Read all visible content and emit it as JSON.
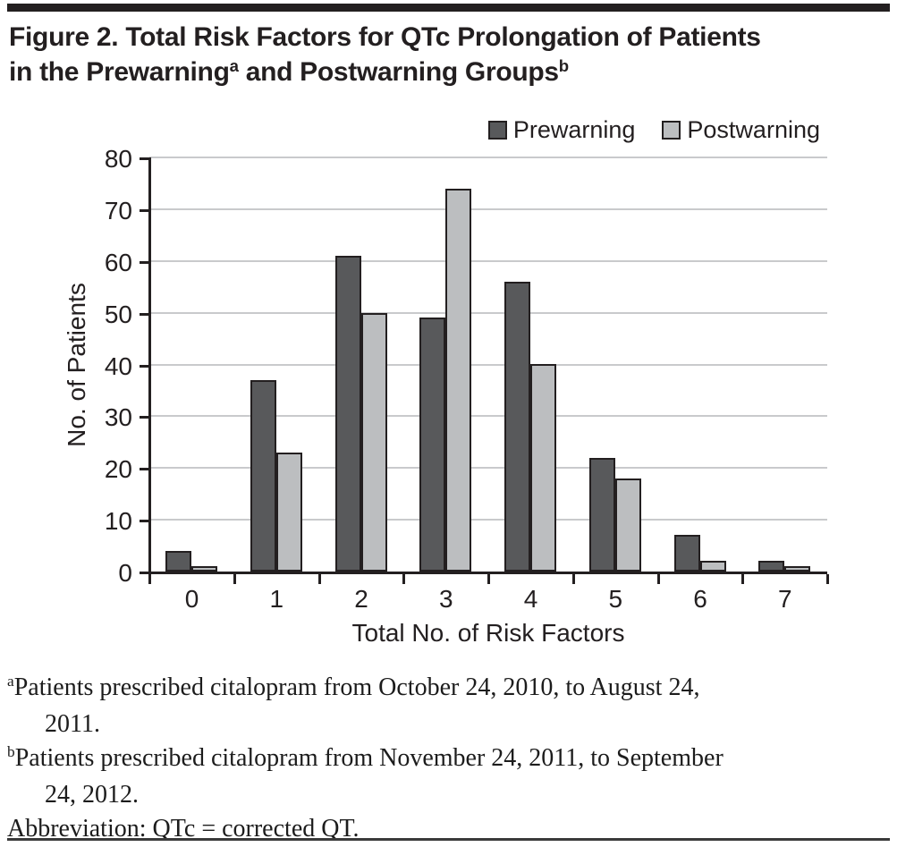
{
  "figure": {
    "title": {
      "line1": "Figure 2. Total Risk Factors for QTc Prolongation of Patients",
      "line2_segments": [
        {
          "text": "in the Prewarning"
        },
        {
          "sup": "a"
        },
        {
          "text": " and Postwarning Groups"
        },
        {
          "sup": "b"
        }
      ]
    },
    "footnotes": [
      {
        "sup": "a",
        "lines": [
          "Patients prescribed citalopram from October 24, 2010, to August 24,",
          "2011."
        ]
      },
      {
        "sup": "b",
        "lines": [
          "Patients prescribed citalopram from November 24, 2011, to September",
          "24, 2012."
        ]
      },
      {
        "sup": "",
        "lines": [
          "Abbreviation: QTc = corrected QT."
        ]
      }
    ],
    "accent_bar_color": "#231f20"
  },
  "chart_data": {
    "type": "bar",
    "categories": [
      "0",
      "1",
      "2",
      "3",
      "4",
      "5",
      "6",
      "7"
    ],
    "series": [
      {
        "name": "Prewarning",
        "color": "#58595b",
        "values": [
          4,
          37,
          61,
          49,
          56,
          22,
          7,
          2
        ]
      },
      {
        "name": "Postwarning",
        "color": "#bcbec0",
        "values": [
          1,
          23,
          50,
          74,
          40,
          18,
          2,
          1
        ]
      }
    ],
    "title": "Figure 2. Total Risk Factors for QTc Prolongation of Patients in the Prewarning and Postwarning Groups",
    "xlabel": "Total No. of Risk Factors",
    "ylabel": "No. of Patients",
    "ylim": [
      0,
      80
    ],
    "ytick_step": 10,
    "grid": true,
    "legend_position": "top-right",
    "bar_outline_color": "#231f20",
    "gridline_color": "#c9cacc"
  }
}
